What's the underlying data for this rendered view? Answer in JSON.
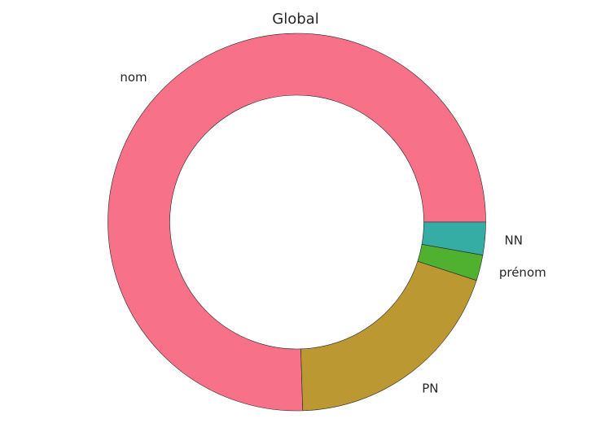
{
  "chart_data": {
    "type": "pie",
    "variant": "donut",
    "title": "Global",
    "slices": [
      {
        "label": "nom",
        "value": 75.5,
        "color": "#f77189"
      },
      {
        "label": "PN",
        "value": 19.5,
        "color": "#bb9832"
      },
      {
        "label": "prénom",
        "value": 2.2,
        "color": "#50b131"
      },
      {
        "label": "NN",
        "value": 2.8,
        "color": "#36ada4"
      }
    ],
    "start_angle_deg": 0,
    "direction": "counterclockwise",
    "wedge_edge_color": "#262626"
  }
}
